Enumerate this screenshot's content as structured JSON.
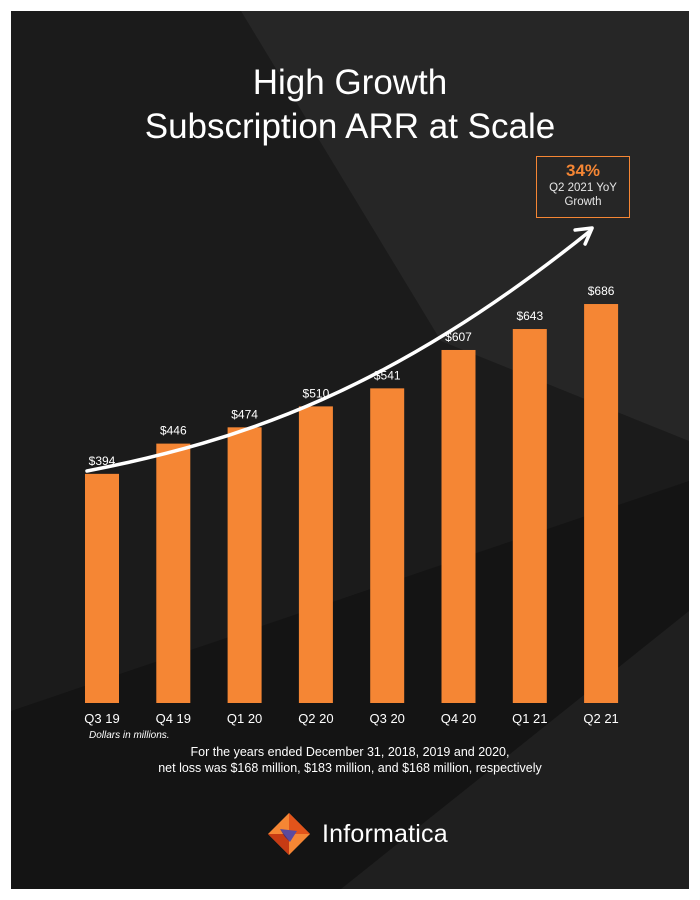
{
  "title_line1": "High Growth",
  "title_line2": "Subscription ARR at Scale",
  "growth_badge": {
    "value": "34%",
    "label_line1": "Q2 2021 YoY",
    "label_line2": "Growth"
  },
  "units_note": "Dollars in millions.",
  "footnote_line1": "For the years ended December 31, 2018, 2019 and 2020,",
  "footnote_line2": "net loss was $168 million, $183 million, and $168 million, respectively",
  "brand_name": "Informatica",
  "colors": {
    "background": "#1b1b1b",
    "bar": "#f58634",
    "text": "#ffffff",
    "arrow": "#ffffff"
  },
  "chart_data": {
    "type": "bar",
    "categories": [
      "Q3 19",
      "Q4 19",
      "Q1 20",
      "Q2 20",
      "Q3 20",
      "Q4 20",
      "Q1 21",
      "Q2 21"
    ],
    "values": [
      394,
      446,
      474,
      510,
      541,
      607,
      643,
      686
    ],
    "data_labels": [
      "$394",
      "$446",
      "$474",
      "$510",
      "$541",
      "$607",
      "$643",
      "$686"
    ],
    "title": "High Growth Subscription ARR at Scale",
    "xlabel": "",
    "ylabel": "",
    "ylim": [
      0,
      686
    ],
    "grid": false,
    "trend_arrow": true
  }
}
